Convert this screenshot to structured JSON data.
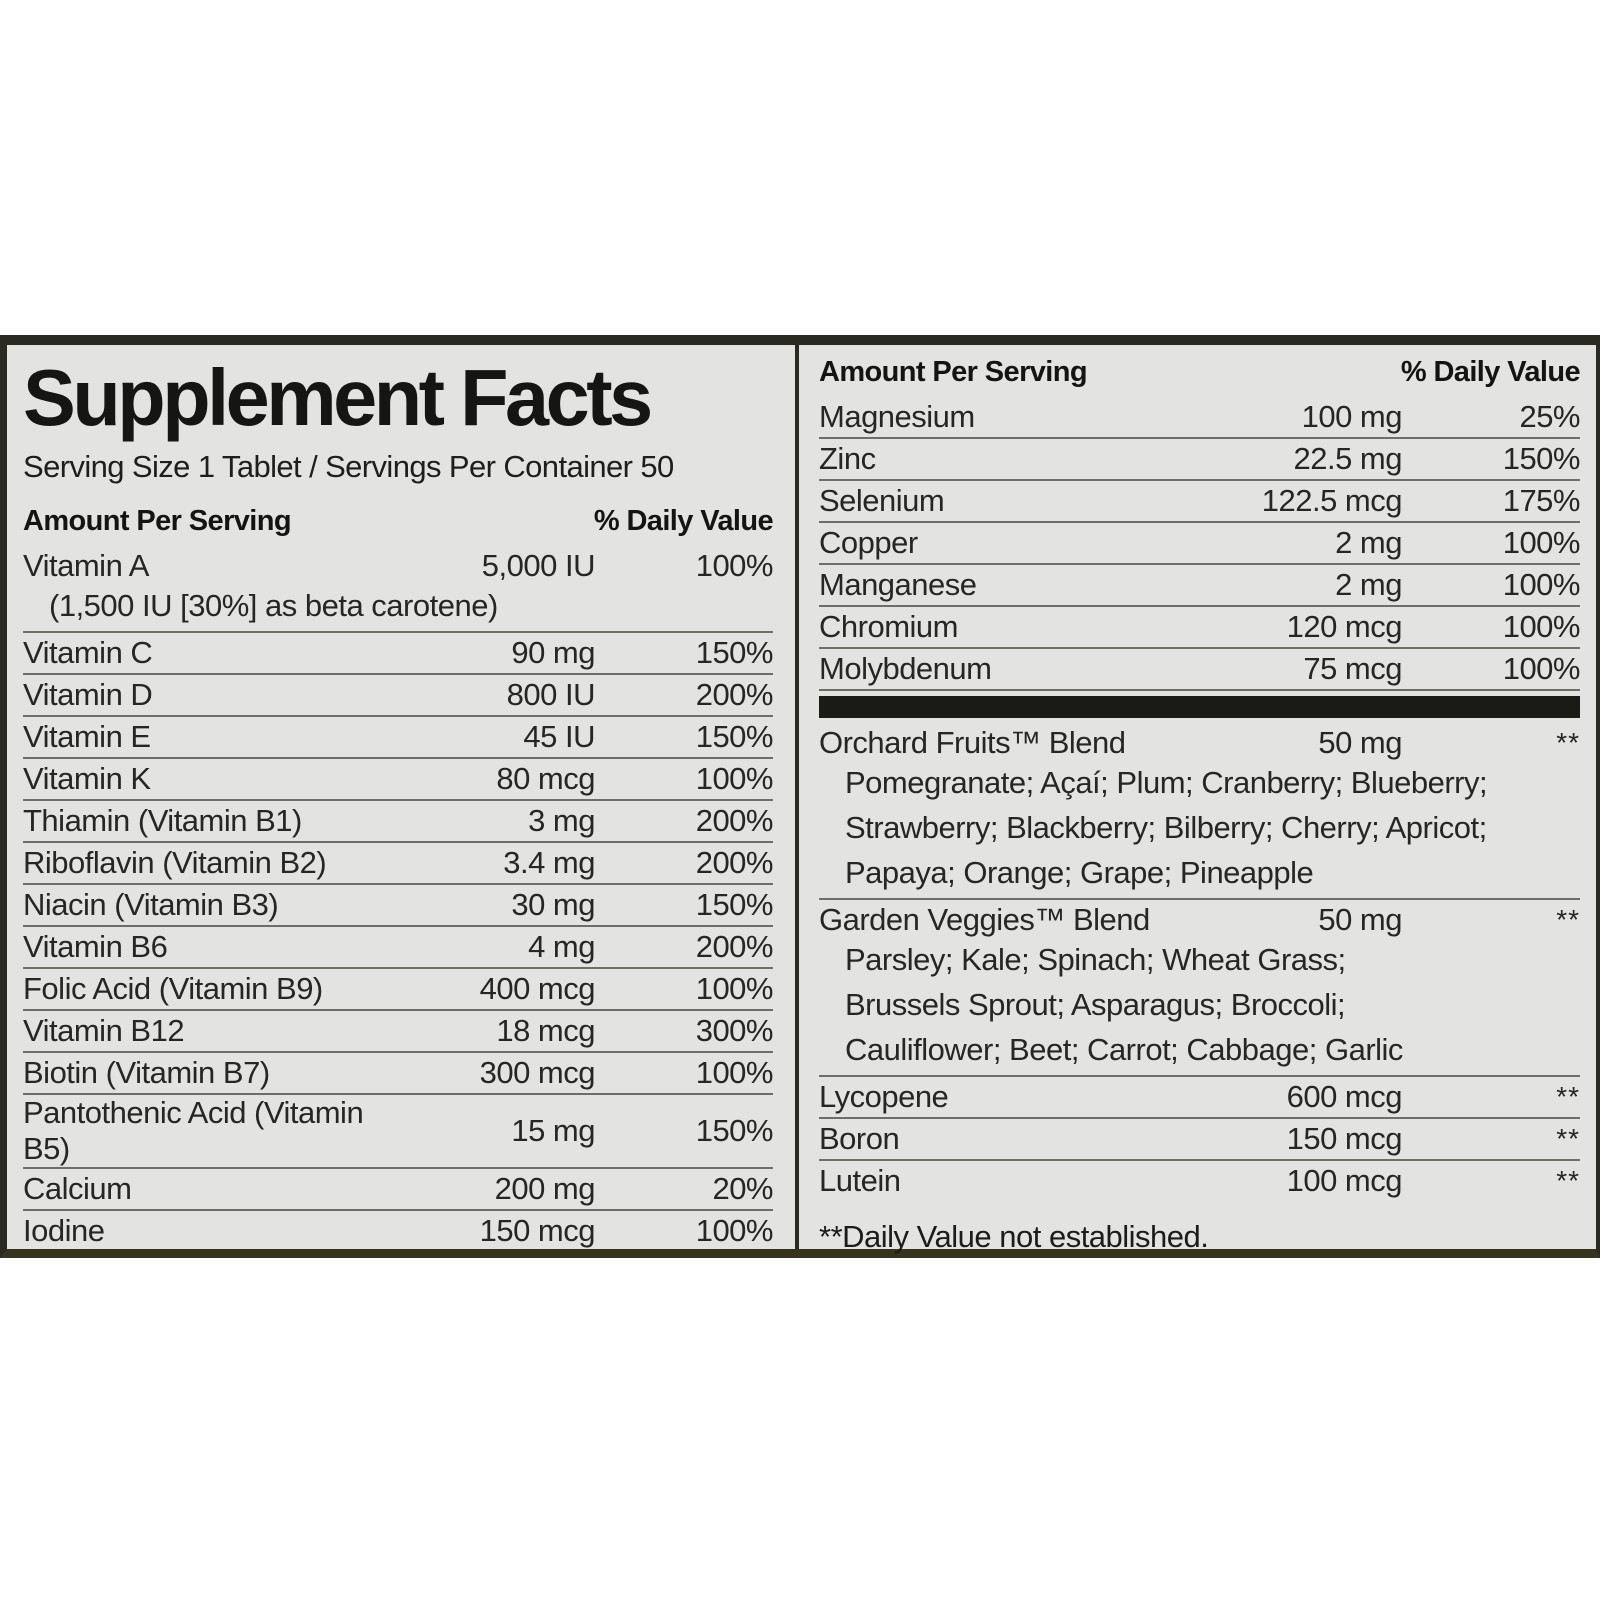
{
  "label": {
    "title": "Supplement Facts",
    "serving_info": "Serving Size 1 Tablet / Servings Per Container 50",
    "column_headers": {
      "amount": "Amount Per Serving",
      "daily_value": "% Daily Value"
    },
    "footnote": "**Daily Value not established.",
    "colors": {
      "label_background": "#e3e4e1",
      "border": "#2a2a22",
      "thick_bar": "#1b1b16",
      "separator": "#6e6e69",
      "text": "#262624"
    },
    "left_table": {
      "rows": [
        {
          "name": "Vitamin A",
          "amount": "5,000 IU",
          "dv": "100%",
          "note": "(1,500 IU [30%] as beta carotene)"
        },
        {
          "name": "Vitamin C",
          "amount": "90 mg",
          "dv": "150%"
        },
        {
          "name": "Vitamin D",
          "amount": "800 IU",
          "dv": "200%"
        },
        {
          "name": "Vitamin E",
          "amount": "45 IU",
          "dv": "150%"
        },
        {
          "name": "Vitamin K",
          "amount": "80 mcg",
          "dv": "100%"
        },
        {
          "name": "Thiamin (Vitamin B1)",
          "amount": "3 mg",
          "dv": "200%"
        },
        {
          "name": "Riboflavin (Vitamin B2)",
          "amount": "3.4 mg",
          "dv": "200%"
        },
        {
          "name": "Niacin (Vitamin B3)",
          "amount": "30 mg",
          "dv": "150%"
        },
        {
          "name": "Vitamin B6",
          "amount": "4 mg",
          "dv": "200%"
        },
        {
          "name": "Folic Acid (Vitamin B9)",
          "amount": "400 mcg",
          "dv": "100%"
        },
        {
          "name": "Vitamin B12",
          "amount": "18 mcg",
          "dv": "300%"
        },
        {
          "name": "Biotin (Vitamin B7)",
          "amount": "300 mcg",
          "dv": "100%"
        },
        {
          "name": "Pantothenic Acid (Vitamin B5)",
          "amount": "15 mg",
          "dv": "150%"
        },
        {
          "name": "Calcium",
          "amount": "200 mg",
          "dv": "20%"
        },
        {
          "name": "Iodine",
          "amount": "150 mcg",
          "dv": "100%"
        }
      ]
    },
    "right_table": {
      "rows": [
        {
          "name": "Magnesium",
          "amount": "100 mg",
          "dv": "25%"
        },
        {
          "name": "Zinc",
          "amount": "22.5 mg",
          "dv": "150%"
        },
        {
          "name": "Selenium",
          "amount": "122.5 mcg",
          "dv": "175%"
        },
        {
          "name": "Copper",
          "amount": "2 mg",
          "dv": "100%"
        },
        {
          "name": "Manganese",
          "amount": "2 mg",
          "dv": "100%"
        },
        {
          "name": "Chromium",
          "amount": "120 mcg",
          "dv": "100%"
        },
        {
          "name": "Molybdenum",
          "amount": "75 mcg",
          "dv": "100%"
        },
        {
          "divider": true
        },
        {
          "name": "Orchard Fruits™ Blend",
          "amount": "50 mg",
          "dv": "**",
          "sub": [
            "Pomegranate; Açaí; Plum; Cranberry; Blueberry;",
            "Strawberry; Blackberry; Bilberry; Cherry; Apricot;",
            "Papaya; Orange; Grape; Pineapple"
          ]
        },
        {
          "name": "Garden Veggies™ Blend",
          "amount": "50 mg",
          "dv": "**",
          "sub": [
            "Parsley; Kale; Spinach; Wheat Grass;",
            "Brussels Sprout; Asparagus; Broccoli;",
            "Cauliflower; Beet; Carrot; Cabbage; Garlic"
          ]
        },
        {
          "name": "Lycopene",
          "amount": "600 mcg",
          "dv": "**"
        },
        {
          "name": "Boron",
          "amount": "150 mcg",
          "dv": "**"
        },
        {
          "name": "Lutein",
          "amount": "100 mcg",
          "dv": "**"
        }
      ]
    }
  }
}
